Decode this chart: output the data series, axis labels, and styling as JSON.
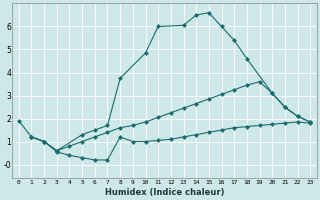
{
  "xlabel": "Humidex (Indice chaleur)",
  "xlim": [
    -0.5,
    23.5
  ],
  "ylim": [
    -0.6,
    7.0
  ],
  "xticks": [
    0,
    1,
    2,
    3,
    4,
    5,
    6,
    7,
    8,
    9,
    10,
    11,
    12,
    13,
    14,
    15,
    16,
    17,
    18,
    19,
    20,
    21,
    22,
    23
  ],
  "yticks": [
    0,
    1,
    2,
    3,
    4,
    5,
    6
  ],
  "ytick_labels": [
    "-0",
    "1",
    "2",
    "3",
    "4",
    "5",
    "6"
  ],
  "bg_color": "#cee8ea",
  "grid_color": "#ffffff",
  "line_color": "#1a6b6b",
  "top_curve_x": [
    0,
    1,
    2,
    3,
    5,
    6,
    7,
    8,
    10,
    11,
    13,
    14,
    15,
    16,
    17,
    18,
    20,
    21,
    22,
    23
  ],
  "top_curve_y": [
    1.9,
    1.2,
    1.0,
    0.6,
    1.3,
    1.5,
    1.7,
    3.75,
    4.85,
    6.0,
    6.05,
    6.5,
    6.6,
    6.0,
    5.4,
    4.6,
    3.1,
    2.5,
    2.1,
    1.85
  ],
  "mid_curve_x": [
    1,
    2,
    3,
    4,
    5,
    6,
    7,
    8,
    9,
    10,
    11,
    12,
    13,
    14,
    15,
    16,
    17,
    18,
    19,
    20,
    21,
    22,
    23
  ],
  "mid_curve_y": [
    1.2,
    1.0,
    0.6,
    0.8,
    1.0,
    1.2,
    1.4,
    1.6,
    1.7,
    1.85,
    2.05,
    2.25,
    2.45,
    2.65,
    2.85,
    3.05,
    3.25,
    3.45,
    3.6,
    3.1,
    2.5,
    2.1,
    1.85
  ],
  "bot_curve_x": [
    1,
    2,
    3,
    4,
    5,
    6,
    7,
    8,
    9,
    10,
    11,
    12,
    13,
    14,
    15,
    16,
    17,
    18,
    19,
    20,
    21,
    22,
    23
  ],
  "bot_curve_y": [
    1.2,
    1.0,
    0.55,
    0.4,
    0.3,
    0.2,
    0.2,
    1.2,
    1.0,
    1.0,
    1.05,
    1.1,
    1.2,
    1.3,
    1.4,
    1.5,
    1.6,
    1.65,
    1.7,
    1.75,
    1.8,
    1.85,
    1.8
  ]
}
